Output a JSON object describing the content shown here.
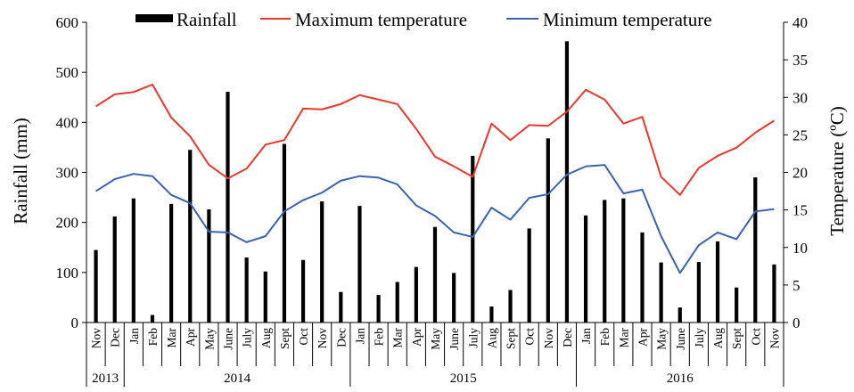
{
  "chart_data": {
    "type": "bar+line",
    "title": "",
    "categories": [
      "Nov",
      "Dec",
      "Jan",
      "Feb",
      "Mar",
      "Apr",
      "May",
      "June",
      "July",
      "Aug",
      "Sept",
      "Oct",
      "Nov",
      "Dec",
      "Jan",
      "Feb",
      "Mar",
      "Apr",
      "May",
      "June",
      "July",
      "Aug",
      "Sept",
      "Oct",
      "Nov",
      "Dec",
      "Jan",
      "Feb",
      "Mar",
      "Apr",
      "May",
      "June",
      "July",
      "Aug",
      "Sept",
      "Oct",
      "Nov"
    ],
    "year_groups": [
      {
        "label": "2013",
        "start": 0,
        "end": 1
      },
      {
        "label": "2014",
        "start": 2,
        "end": 13
      },
      {
        "label": "2015",
        "start": 14,
        "end": 25
      },
      {
        "label": "2016",
        "start": 26,
        "end": 36
      }
    ],
    "series": [
      {
        "name": "Rainfall",
        "type": "bar",
        "axis": "left",
        "color": "#000000",
        "values": [
          145,
          212,
          248,
          15,
          237,
          345,
          226,
          461,
          130,
          102,
          357,
          125,
          242,
          61,
          233,
          55,
          81,
          111,
          191,
          99,
          333,
          32,
          65,
          188,
          368,
          562,
          214,
          245,
          248,
          180,
          120,
          30,
          121,
          162,
          70,
          290,
          116
        ]
      },
      {
        "name": "Maximum temperature",
        "type": "line",
        "axis": "right",
        "color": "#e8392f",
        "values": [
          28.8,
          30.4,
          30.7,
          31.7,
          27.3,
          24.8,
          21.0,
          19.2,
          20.5,
          23.7,
          24.3,
          28.5,
          28.4,
          29.1,
          30.3,
          29.7,
          29.1,
          25.8,
          22.1,
          20.8,
          19.4,
          26.5,
          24.3,
          26.3,
          26.2,
          28.1,
          31.0,
          29.7,
          26.5,
          27.4,
          19.4,
          17.0,
          20.6,
          22.2,
          23.3,
          25.3,
          26.9
        ]
      },
      {
        "name": "Minimum temperature",
        "type": "line",
        "axis": "right",
        "color": "#3b63b0",
        "values": [
          17.5,
          19.1,
          19.8,
          19.5,
          17.0,
          15.9,
          12.1,
          12.0,
          10.7,
          11.5,
          14.8,
          16.3,
          17.3,
          18.9,
          19.5,
          19.3,
          18.4,
          15.6,
          14.2,
          12.0,
          11.4,
          15.3,
          13.7,
          16.6,
          17.1,
          19.7,
          20.8,
          21.0,
          17.2,
          17.7,
          11.5,
          6.6,
          10.3,
          12.0,
          11.1,
          14.8,
          15.1
        ]
      }
    ],
    "ylabel": "Rainfall (mm)",
    "y2label": "Temperature (ºC)",
    "ylim": [
      0,
      600
    ],
    "y2lim": [
      0,
      40
    ],
    "yticks": [
      0,
      100,
      200,
      300,
      400,
      500,
      600
    ],
    "y2ticks": [
      0,
      5,
      10,
      15,
      20,
      25,
      30,
      35,
      40
    ],
    "grid": false,
    "legend_position": "top"
  }
}
